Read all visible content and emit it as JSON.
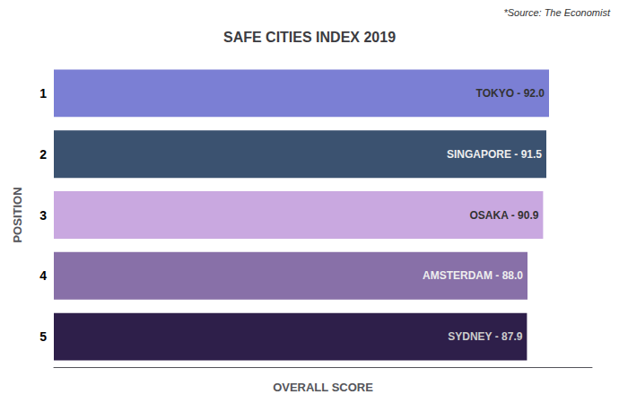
{
  "chart_data": {
    "type": "bar",
    "orientation": "horizontal",
    "title": "SAFE CITIES INDEX 2019",
    "annotations": [
      "*Source: The Economist"
    ],
    "xlabel": "OVERALL SCORE",
    "ylabel": "POSITION",
    "categories": [
      "1",
      "2",
      "3",
      "4",
      "5"
    ],
    "values": [
      92.0,
      91.5,
      90.9,
      88.0,
      87.9
    ],
    "value_labels": [
      "TOKYO - 92.0",
      "SINGAPORE - 91.5",
      "OSAKA - 90.9",
      "AMSTERDAM - 88.0",
      "SYDNEY - 87.9"
    ],
    "data_labels": true,
    "colors": [
      "#7B7FD4",
      "#3B5270",
      "#C9A8E0",
      "#8870A8",
      "#2E1F4A"
    ],
    "xlim": [
      0,
      100
    ],
    "tick_labels": "y",
    "grid": false
  }
}
